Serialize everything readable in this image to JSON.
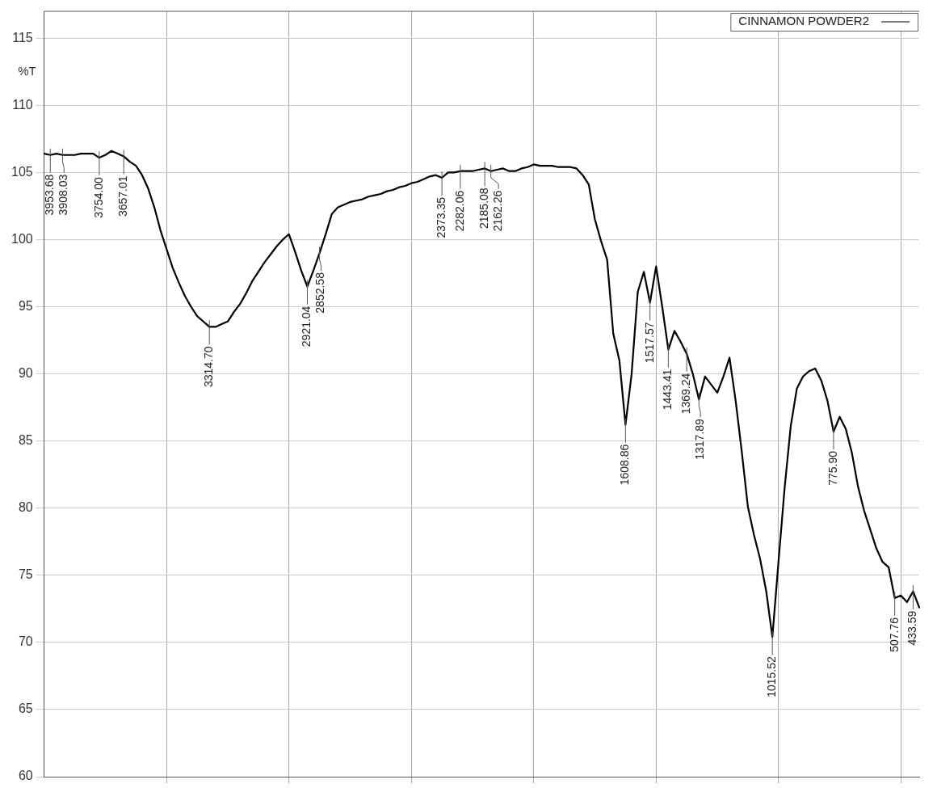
{
  "chart_data": {
    "type": "line",
    "ylabel": "%T",
    "categories": [
      null,
      null,
      null,
      null,
      null,
      null,
      null,
      null,
      null,
      null,
      null,
      null,
      null,
      null,
      null,
      null,
      null,
      null,
      null,
      null,
      null,
      null,
      null,
      null,
      null,
      null,
      null,
      null,
      null,
      null,
      null,
      null,
      null,
      null,
      null,
      null,
      null,
      null,
      null,
      null,
      null,
      null,
      null,
      null,
      null,
      null,
      null,
      null,
      null,
      null,
      null,
      null,
      null,
      null,
      null,
      null,
      null,
      null,
      null,
      null,
      null,
      null,
      null,
      null,
      null,
      null,
      null,
      null,
      null,
      null,
      null,
      null,
      null,
      null,
      null,
      null,
      null,
      null,
      null,
      null,
      null,
      null,
      null,
      null,
      null,
      null,
      null,
      null,
      null,
      null,
      null,
      null,
      null,
      null,
      null,
      null,
      null,
      null,
      null,
      null,
      null,
      null,
      null,
      null,
      null,
      null,
      null,
      null,
      null,
      null,
      null,
      null,
      null,
      null,
      null,
      null,
      null,
      null,
      null,
      null,
      null,
      null,
      null,
      null,
      null,
      null,
      null,
      null,
      null,
      null,
      null,
      null,
      null,
      null,
      null,
      null,
      null,
      null,
      null,
      null,
      null,
      null,
      null,
      null
    ],
    "ylim": [
      60,
      117
    ],
    "yticks": [
      60,
      65,
      70,
      75,
      80,
      85,
      90,
      95,
      100,
      105,
      110,
      115
    ],
    "grid": true,
    "legend": "top right",
    "tick_labels": "y",
    "marker": "none",
    "line_style": "solid",
    "series": [
      {
        "name": "CINNAMON POWDER2",
        "color": "#000000",
        "values": [
          106.4,
          106.3,
          106.4,
          106.3,
          106.3,
          106.3,
          106.4,
          106.4,
          106.4,
          106.1,
          106.3,
          106.6,
          106.4,
          106.2,
          105.8,
          105.5,
          104.8,
          103.8,
          102.4,
          100.7,
          99.3,
          97.9,
          96.8,
          95.8,
          95.0,
          94.3,
          93.9,
          93.5,
          93.5,
          93.7,
          93.9,
          94.6,
          95.2,
          96.0,
          96.9,
          97.6,
          98.3,
          98.9,
          99.5,
          100.0,
          100.4,
          99.1,
          97.7,
          96.5,
          97.7,
          99.0,
          100.4,
          101.9,
          102.4,
          102.6,
          102.8,
          102.9,
          103.0,
          103.2,
          103.3,
          103.4,
          103.6,
          103.7,
          103.9,
          104.0,
          104.2,
          104.3,
          104.5,
          104.7,
          104.8,
          104.6,
          105.0,
          105.0,
          105.1,
          105.1,
          105.1,
          105.2,
          105.3,
          105.1,
          105.2,
          105.3,
          105.1,
          105.1,
          105.3,
          105.4,
          105.6,
          105.5,
          105.5,
          105.5,
          105.4,
          105.4,
          105.4,
          105.3,
          104.8,
          104.1,
          101.5,
          99.9,
          98.5,
          93.0,
          91.0,
          86.2,
          90.0,
          96.1,
          97.6,
          95.3,
          98.0,
          95.0,
          91.8,
          93.2,
          92.4,
          91.5,
          90.0,
          88.1,
          89.8,
          89.2,
          88.6,
          89.8,
          91.2,
          88.0,
          84.2,
          80.1,
          78.0,
          76.2,
          73.8,
          70.4,
          76.0,
          81.5,
          86.1,
          88.9,
          89.8,
          90.2,
          90.4,
          89.5,
          88.0,
          85.7,
          86.8,
          85.9,
          84.1,
          81.6,
          79.8,
          78.4,
          77.0,
          76.0,
          75.6,
          73.3,
          73.5,
          73.0,
          73.8,
          72.6
        ]
      }
    ],
    "annotations": [
      {
        "text": "3953.68",
        "y": 106.3
      },
      {
        "text": "3908.03",
        "y": 106.3
      },
      {
        "text": "3754.00",
        "y": 106.1
      },
      {
        "text": "3657.01",
        "y": 106.2
      },
      {
        "text": "3314.70",
        "y": 93.5
      },
      {
        "text": "2921.04",
        "y": 96.5
      },
      {
        "text": "2852.58",
        "y": 99.0
      },
      {
        "text": "2373.35",
        "y": 104.6
      },
      {
        "text": "2282.06",
        "y": 105.1
      },
      {
        "text": "2185.08",
        "y": 105.3
      },
      {
        "text": "2162.26",
        "y": 105.1
      },
      {
        "text": "1608.86",
        "y": 86.2
      },
      {
        "text": "1517.57",
        "y": 95.3
      },
      {
        "text": "1443.41",
        "y": 91.8
      },
      {
        "text": "1369.24",
        "y": 91.5
      },
      {
        "text": "1317.89",
        "y": 88.1
      },
      {
        "text": "1015.52",
        "y": 70.4
      },
      {
        "text": "775.90",
        "y": 85.7
      },
      {
        "text": "507.76",
        "y": 73.3
      },
      {
        "text": "433.59",
        "y": 73.8
      }
    ]
  }
}
